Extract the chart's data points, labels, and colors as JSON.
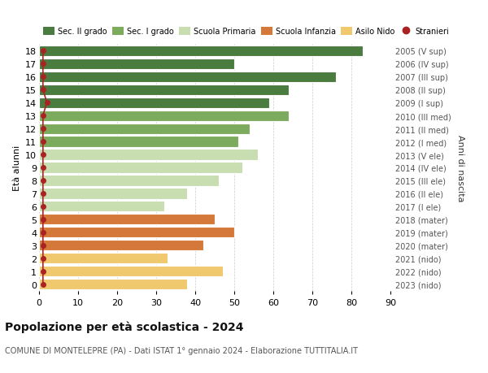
{
  "ages": [
    18,
    17,
    16,
    15,
    14,
    13,
    12,
    11,
    10,
    9,
    8,
    7,
    6,
    5,
    4,
    3,
    2,
    1,
    0
  ],
  "values": [
    83,
    50,
    76,
    64,
    59,
    64,
    54,
    51,
    56,
    52,
    46,
    38,
    32,
    45,
    50,
    42,
    33,
    47,
    38
  ],
  "stranieri_x": [
    1,
    1,
    1,
    1,
    2,
    1,
    1,
    1,
    1,
    1,
    1,
    1,
    1,
    1,
    1,
    1,
    1,
    1,
    1
  ],
  "right_labels": [
    "2005 (V sup)",
    "2006 (IV sup)",
    "2007 (III sup)",
    "2008 (II sup)",
    "2009 (I sup)",
    "2010 (III med)",
    "2011 (II med)",
    "2012 (I med)",
    "2013 (V ele)",
    "2014 (IV ele)",
    "2015 (III ele)",
    "2016 (II ele)",
    "2017 (I ele)",
    "2018 (mater)",
    "2019 (mater)",
    "2020 (mater)",
    "2021 (nido)",
    "2022 (nido)",
    "2023 (nido)"
  ],
  "bar_colors": [
    "#4a7c3f",
    "#4a7c3f",
    "#4a7c3f",
    "#4a7c3f",
    "#4a7c3f",
    "#7dab5e",
    "#7dab5e",
    "#7dab5e",
    "#c8deb0",
    "#c8deb0",
    "#c8deb0",
    "#c8deb0",
    "#c8deb0",
    "#d4793a",
    "#d4793a",
    "#d4793a",
    "#f0c96e",
    "#f0c96e",
    "#f0c96e"
  ],
  "legend_labels": [
    "Sec. II grado",
    "Sec. I grado",
    "Scuola Primaria",
    "Scuola Infanzia",
    "Asilo Nido",
    "Stranieri"
  ],
  "legend_colors": [
    "#4a7c3f",
    "#7dab5e",
    "#c8deb0",
    "#d4793a",
    "#f0c96e",
    "#aa2222"
  ],
  "stranieri_color": "#aa2222",
  "title": "Popolazione per età scolastica - 2024",
  "subtitle": "COMUNE DI MONTELEPRE (PA) - Dati ISTAT 1° gennaio 2024 - Elaborazione TUTTITALIA.IT",
  "ylabel_left": "Età alunni",
  "ylabel_right": "Anni di nascita",
  "xlim": [
    0,
    90
  ],
  "xticks": [
    0,
    10,
    20,
    30,
    40,
    50,
    60,
    70,
    80,
    90
  ],
  "bg_color": "#ffffff",
  "grid_color": "#cccccc",
  "bar_height": 0.82
}
